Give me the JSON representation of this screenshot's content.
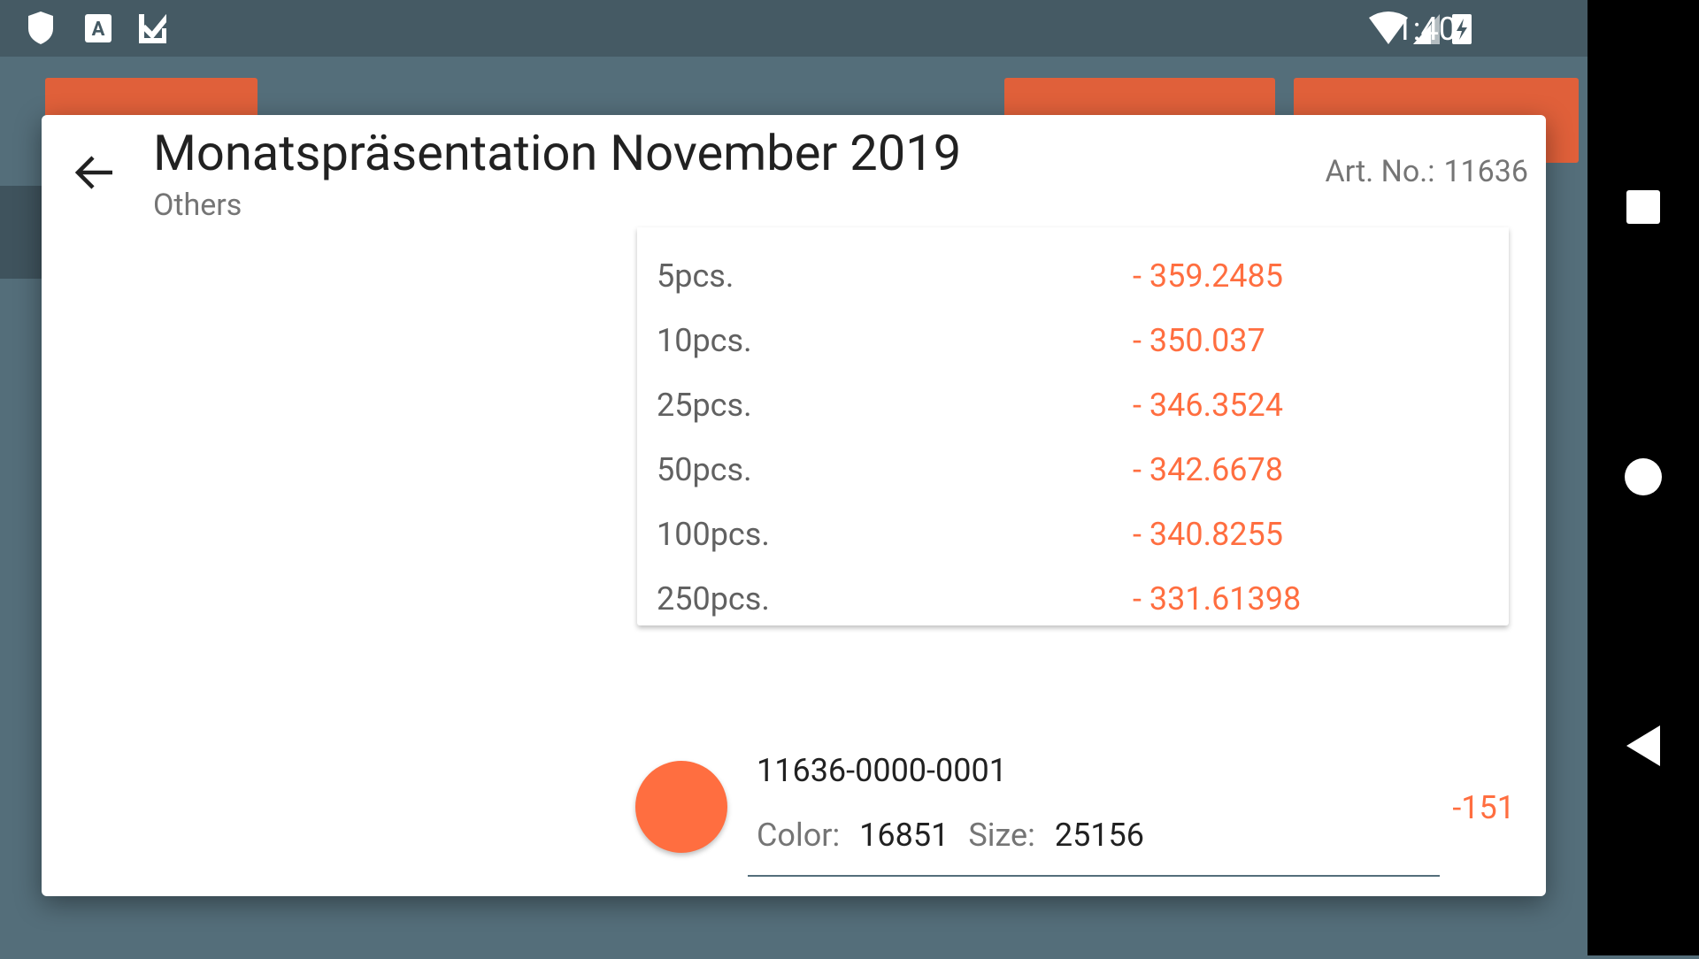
{
  "status_bar": {
    "time": "1:40"
  },
  "dialog": {
    "title": "Monatspräsentation November 2019",
    "subtitle": "Others",
    "art_no_label": "Art. No.:",
    "art_no": "11636",
    "price_tiers": [
      {
        "quantity": "5pcs.",
        "price": "- 359.2485"
      },
      {
        "quantity": "10pcs.",
        "price": "- 350.037"
      },
      {
        "quantity": "25pcs.",
        "price": "- 346.3524"
      },
      {
        "quantity": "50pcs.",
        "price": "- 342.6678"
      },
      {
        "quantity": "100pcs.",
        "price": "- 340.8255"
      },
      {
        "quantity": "250pcs.",
        "price": "- 331.61398"
      }
    ],
    "variant": {
      "code": "11636-0000-0001",
      "color_label": "Color:",
      "color": "16851",
      "size_label": "Size:",
      "size": "25156",
      "quantity": "-151"
    }
  }
}
